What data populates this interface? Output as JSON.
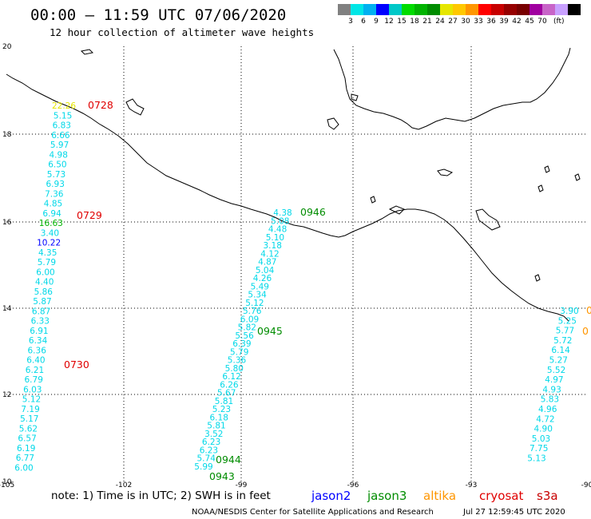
{
  "title": "00:00 – 11:59 UTC 07/06/2020",
  "subtitle": "12 hour collection of altimeter wave heights",
  "colorbar": {
    "colors": [
      "#808080",
      "#00e6e6",
      "#00b0f0",
      "#0000ff",
      "#00c8c8",
      "#00dc00",
      "#00b400",
      "#008c00",
      "#e6e600",
      "#ffc800",
      "#ff9600",
      "#ff0000",
      "#c80000",
      "#960000",
      "#780000",
      "#a000a0",
      "#c864c8",
      "#c8a0ff",
      "#000000"
    ],
    "labels": [
      "3",
      "6",
      "9",
      "12",
      "15",
      "18",
      "21",
      "24",
      "27",
      "30",
      "33",
      "36",
      "39",
      "42",
      "45",
      "70"
    ],
    "unit": "(ft)"
  },
  "axes": {
    "lon_labels": [
      "-105",
      "-102",
      "-99",
      "-96",
      "-93",
      "-90"
    ],
    "lat_labels": [
      "20",
      "18",
      "16",
      "14",
      "12",
      "10"
    ]
  },
  "tracks": [
    {
      "id": "track-a",
      "values": [
        {
          "v": "22.26",
          "c": "#e6e600"
        },
        {
          "v": "5.15",
          "c": "#00d8e8"
        },
        {
          "v": "6.83",
          "c": "#00d8e8"
        },
        {
          "v": "6.66",
          "c": "#00d8e8"
        },
        {
          "v": "5.97",
          "c": "#00d8e8"
        },
        {
          "v": "4.98",
          "c": "#00d8e8"
        },
        {
          "v": "6.50",
          "c": "#00d8e8"
        },
        {
          "v": "5.73",
          "c": "#00d8e8"
        },
        {
          "v": "6.93",
          "c": "#00d8e8"
        },
        {
          "v": "7.36",
          "c": "#00d8e8"
        },
        {
          "v": "4.85",
          "c": "#00d8e8"
        },
        {
          "v": "6.94",
          "c": "#00d8e8"
        },
        {
          "v": "16.63",
          "c": "#00b400"
        },
        {
          "v": "3.40",
          "c": "#00d8e8"
        },
        {
          "v": "10.22",
          "c": "#0000ff"
        },
        {
          "v": "4.35",
          "c": "#00d8e8"
        },
        {
          "v": "5.79",
          "c": "#00d8e8"
        },
        {
          "v": "6.00",
          "c": "#00d8e8"
        },
        {
          "v": "4.40",
          "c": "#00d8e8"
        },
        {
          "v": "5.86",
          "c": "#00d8e8"
        },
        {
          "v": "5.87",
          "c": "#00d8e8"
        },
        {
          "v": "6.87",
          "c": "#00d8e8"
        },
        {
          "v": "6.33",
          "c": "#00d8e8"
        },
        {
          "v": "6.91",
          "c": "#00d8e8"
        },
        {
          "v": "6.34",
          "c": "#00d8e8"
        },
        {
          "v": "6.36",
          "c": "#00d8e8"
        },
        {
          "v": "6.40",
          "c": "#00d8e8"
        },
        {
          "v": "6.21",
          "c": "#00d8e8"
        },
        {
          "v": "6.79",
          "c": "#00d8e8"
        },
        {
          "v": "6.03",
          "c": "#00d8e8"
        },
        {
          "v": "5.12",
          "c": "#00d8e8"
        },
        {
          "v": "7.19",
          "c": "#00d8e8"
        },
        {
          "v": "5.17",
          "c": "#00d8e8"
        },
        {
          "v": "5.62",
          "c": "#00d8e8"
        },
        {
          "v": "6.57",
          "c": "#00d8e8"
        },
        {
          "v": "6.19",
          "c": "#00d8e8"
        },
        {
          "v": "6.77",
          "c": "#00d8e8"
        },
        {
          "v": "6.00",
          "c": "#00d8e8"
        }
      ],
      "times": [
        {
          "t": "0728",
          "c": "#e00000"
        },
        {
          "t": "0729",
          "c": "#e00000"
        },
        {
          "t": "0730",
          "c": "#e00000"
        }
      ]
    },
    {
      "id": "track-b",
      "values": [
        {
          "v": "4.38",
          "c": "#00d8e8"
        },
        {
          "v": "5.08",
          "c": "#00d8e8"
        },
        {
          "v": "4.48",
          "c": "#00d8e8"
        },
        {
          "v": "5.10",
          "c": "#00d8e8"
        },
        {
          "v": "3.18",
          "c": "#00d8e8"
        },
        {
          "v": "4.12",
          "c": "#00d8e8"
        },
        {
          "v": "4.87",
          "c": "#00d8e8"
        },
        {
          "v": "5.04",
          "c": "#00d8e8"
        },
        {
          "v": "4.26",
          "c": "#00d8e8"
        },
        {
          "v": "5.49",
          "c": "#00d8e8"
        },
        {
          "v": "5.34",
          "c": "#00d8e8"
        },
        {
          "v": "5.12",
          "c": "#00d8e8"
        },
        {
          "v": "5.76",
          "c": "#00d8e8"
        },
        {
          "v": "6.09",
          "c": "#00d8e8"
        },
        {
          "v": "5.82",
          "c": "#00d8e8"
        },
        {
          "v": "5.56",
          "c": "#00d8e8"
        },
        {
          "v": "6.39",
          "c": "#00d8e8"
        },
        {
          "v": "5.79",
          "c": "#00d8e8"
        },
        {
          "v": "5.36",
          "c": "#00d8e8"
        },
        {
          "v": "5.80",
          "c": "#00d8e8"
        },
        {
          "v": "6.12",
          "c": "#00d8e8"
        },
        {
          "v": "6.26",
          "c": "#00d8e8"
        },
        {
          "v": "5.67",
          "c": "#00d8e8"
        },
        {
          "v": "5.81",
          "c": "#00d8e8"
        },
        {
          "v": "5.23",
          "c": "#00d8e8"
        },
        {
          "v": "6.18",
          "c": "#00d8e8"
        },
        {
          "v": "5.81",
          "c": "#00d8e8"
        },
        {
          "v": "3.52",
          "c": "#00d8e8"
        },
        {
          "v": "6.23",
          "c": "#00d8e8"
        },
        {
          "v": "6.23",
          "c": "#00d8e8"
        },
        {
          "v": "5.74",
          "c": "#00d8e8"
        },
        {
          "v": "5.99",
          "c": "#00d8e8"
        }
      ],
      "times": [
        {
          "t": "0946",
          "c": "#008c00"
        },
        {
          "t": "0945",
          "c": "#008c00"
        },
        {
          "t": "0944",
          "c": "#008c00"
        },
        {
          "t": "0943",
          "c": "#008c00"
        }
      ]
    },
    {
      "id": "track-c",
      "values": [
        {
          "v": "3.90",
          "c": "#00d8e8"
        },
        {
          "v": "5.25",
          "c": "#00d8e8"
        },
        {
          "v": "5.77",
          "c": "#00d8e8"
        },
        {
          "v": "5.72",
          "c": "#00d8e8"
        },
        {
          "v": "6.14",
          "c": "#00d8e8"
        },
        {
          "v": "5.27",
          "c": "#00d8e8"
        },
        {
          "v": "5.52",
          "c": "#00d8e8"
        },
        {
          "v": "4.97",
          "c": "#00d8e8"
        },
        {
          "v": "4.93",
          "c": "#00d8e8"
        },
        {
          "v": "5.83",
          "c": "#00d8e8"
        },
        {
          "v": "4.96",
          "c": "#00d8e8"
        },
        {
          "v": "4.72",
          "c": "#00d8e8"
        },
        {
          "v": "4.90",
          "c": "#00d8e8"
        },
        {
          "v": "5.03",
          "c": "#00d8e8"
        },
        {
          "v": "7.75",
          "c": "#00d8e8"
        },
        {
          "v": "5.13",
          "c": "#00d8e8"
        }
      ],
      "times": [
        {
          "t": "0",
          "c": "#ff9600"
        },
        {
          "t": "0",
          "c": "#ff9600"
        }
      ]
    }
  ],
  "note": "note:  1) Time is in UTC;  2) SWH is in feet",
  "legend": [
    {
      "label": "jason2",
      "color": "#0000ff"
    },
    {
      "label": "jason3",
      "color": "#008c00"
    },
    {
      "label": "altika",
      "color": "#ff9600"
    },
    {
      "label": "cryosat",
      "color": "#e00000"
    },
    {
      "label": "s3a",
      "color": "#c80000"
    }
  ],
  "credit_left": "NOAA/NESDIS Center for Satellite Applications and Research",
  "credit_right": "Jul 27 12:59:45 UTC 2020"
}
